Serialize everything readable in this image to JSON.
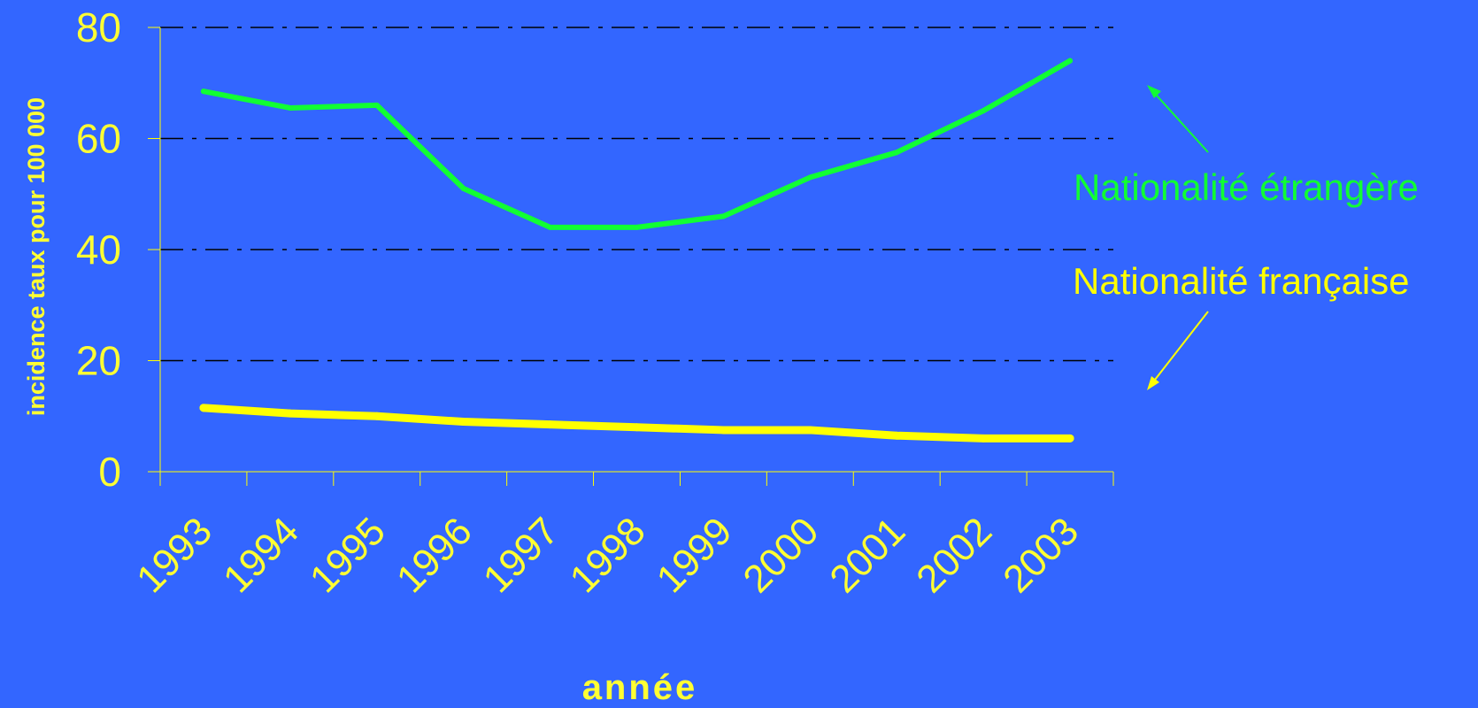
{
  "colors": {
    "background": "#3366FF",
    "text": "#FFFF33",
    "axis": "#FFFF00",
    "grid": "#000000",
    "foreign": "#11FF33",
    "french": "#FFFF00"
  },
  "chart_data": {
    "type": "line",
    "categories": [
      "1993",
      "1994",
      "1995",
      "1996",
      "1997",
      "1998",
      "1999",
      "2000",
      "2001",
      "2002",
      "2003"
    ],
    "series": [
      {
        "name": "Nationalité étrangère",
        "key": "foreign",
        "values": [
          68.5,
          65.5,
          66,
          51,
          44,
          44,
          46,
          53,
          57.5,
          65,
          74
        ]
      },
      {
        "name": "Nationalité française",
        "key": "french",
        "values": [
          11.5,
          10.5,
          10,
          9,
          8.5,
          8,
          7.5,
          7.5,
          6.5,
          6,
          6
        ]
      }
    ],
    "y_ticks": [
      "0",
      "20",
      "40",
      "60",
      "80"
    ],
    "ylim": [
      0,
      80
    ],
    "xlabel": "année",
    "ylabel": "incidence taux pour 100 000",
    "grid": true,
    "legend": "right, with arrows pointing to lines"
  }
}
